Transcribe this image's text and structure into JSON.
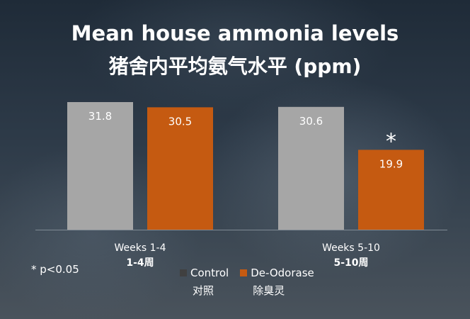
{
  "title_en": "Mean house ammonia levels",
  "title_zh": "猪舍内平均氨气水平 (ppm)",
  "chart_data": {
    "type": "bar",
    "categories": [
      "Weeks 1-4",
      "Weeks 5-10"
    ],
    "categories_zh": [
      "1-4周",
      "5-10周"
    ],
    "series": [
      {
        "name": "Control",
        "name_zh": "对照",
        "color": "#a6a6a6",
        "values": [
          31.8,
          30.6
        ],
        "label_color": "#ffffff"
      },
      {
        "name": "De-Odorase",
        "name_zh": "除臭灵",
        "color": "#c55a11",
        "values": [
          30.5,
          19.9
        ],
        "label_color": "#ffffff"
      }
    ],
    "ylim": [
      0,
      31.8
    ],
    "annotations": [
      {
        "text": "*",
        "category": "Weeks 5-10",
        "series": "De-Odorase"
      }
    ]
  },
  "footnote": "* p<0.05",
  "legend_swatch_colors": [
    "#404040",
    "#c55a11"
  ]
}
